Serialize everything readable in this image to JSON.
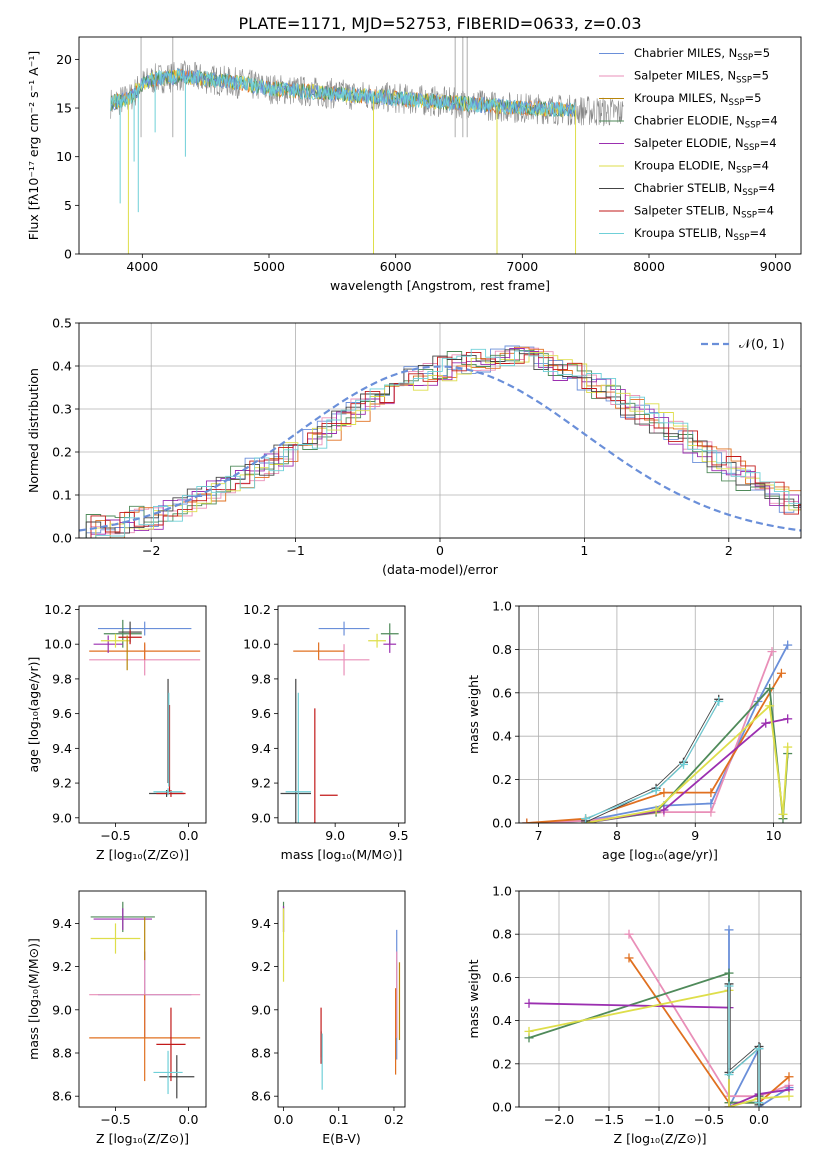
{
  "figure": {
    "title": "PLATE=1171, MJD=52753, FIBERID=0633, z=0.03"
  },
  "colors": {
    "c0": "#6a8fd9",
    "c1": "#e98fb8",
    "c2": "#b8860b",
    "c3": "#4f8a5a",
    "c4": "#9b2fb0",
    "c5": "#dede4a",
    "c6": "#444444",
    "c7": "#c21a1a",
    "c8": "#6fd0d8",
    "orange": "#e07020",
    "grey": "#888888",
    "gauss": "#6a8fd9"
  },
  "chart_data": [
    {
      "id": "spectrum",
      "type": "line",
      "xlabel": "wavelength [Angstrom, rest frame]",
      "ylabel": "Flux [fλ10⁻¹⁷ erg cm⁻² s⁻¹ A⁻¹]",
      "xlim": [
        3500,
        9200
      ],
      "ylim": [
        0,
        22.3
      ],
      "xticks": [
        4000,
        5000,
        6000,
        7000,
        8000,
        9000
      ],
      "yticks": [
        0,
        5,
        10,
        15,
        20
      ],
      "grid": false,
      "legend_position": "top-right",
      "legend": [
        {
          "label": "Chabrier MILES, N",
          "sub": "SSP",
          "suffix": "=5",
          "color": "c0"
        },
        {
          "label": "Salpeter MILES, N",
          "sub": "SSP",
          "suffix": "=5",
          "color": "c1"
        },
        {
          "label": "Kroupa MILES, N",
          "sub": "SSP",
          "suffix": "=5",
          "color": "c2"
        },
        {
          "label": "Chabrier ELODIE, N",
          "sub": "SSP",
          "suffix": "=4",
          "color": "c3"
        },
        {
          "label": "Salpeter ELODIE, N",
          "sub": "SSP",
          "suffix": "=4",
          "color": "c4"
        },
        {
          "label": "Kroupa ELODIE, N",
          "sub": "SSP",
          "suffix": "=4",
          "color": "c5"
        },
        {
          "label": "Chabrier STELIB, N",
          "sub": "SSP",
          "suffix": "=4",
          "color": "c6"
        },
        {
          "label": "Salpeter STELIB, N",
          "sub": "SSP",
          "suffix": "=4",
          "color": "c7"
        },
        {
          "label": "Kroupa STELIB, N",
          "sub": "SSP",
          "suffix": "=4",
          "color": "c8"
        }
      ],
      "data_range": [
        3750,
        7800
      ],
      "model_range": [
        3750,
        7420
      ],
      "continuum": [
        [
          3750,
          15.5
        ],
        [
          3900,
          16.0
        ],
        [
          4000,
          17.5
        ],
        [
          4100,
          18.0
        ],
        [
          4300,
          18.3
        ],
        [
          4500,
          18.0
        ],
        [
          4800,
          17.5
        ],
        [
          5000,
          17.0
        ],
        [
          5500,
          16.5
        ],
        [
          6000,
          16.0
        ],
        [
          6500,
          15.5
        ],
        [
          7000,
          15.0
        ],
        [
          7400,
          14.8
        ],
        [
          7800,
          14.5
        ]
      ],
      "spikes": [
        {
          "x": 3825,
          "y": 5.2
        },
        {
          "x": 3890,
          "y": 0.0
        },
        {
          "x": 3935,
          "y": 9.5
        },
        {
          "x": 3968,
          "y": 4.3
        },
        {
          "x": 4101,
          "y": 12.5
        },
        {
          "x": 4340,
          "y": 10.0
        },
        {
          "x": 5825,
          "y": 0.0
        },
        {
          "x": 6800,
          "y": 0.0
        },
        {
          "x": 7420,
          "y": 0.0
        }
      ],
      "bad_pixels": [
        [
          6470,
          22.3
        ],
        [
          6530,
          22.3
        ],
        [
          6565,
          22.3
        ],
        [
          3990,
          22.3
        ],
        [
          4240,
          22.3
        ]
      ]
    },
    {
      "id": "residual-histogram",
      "type": "bar",
      "xlabel": "(data-model)/error",
      "ylabel": "Normed distribution",
      "xlim": [
        -2.5,
        2.5
      ],
      "ylim": [
        0,
        0.5
      ],
      "xticks": [
        -2,
        -1,
        0,
        1,
        2
      ],
      "yticks": [
        0.0,
        0.1,
        0.2,
        0.3,
        0.4,
        0.5
      ],
      "grid": true,
      "legend_position": "top-right",
      "legend": [
        {
          "label": "𝒩(0, 1)",
          "color": "gauss",
          "dashed": true
        }
      ],
      "bin_width": 0.1,
      "base": [
        0.02,
        0.025,
        0.03,
        0.035,
        0.045,
        0.05,
        0.06,
        0.075,
        0.09,
        0.105,
        0.12,
        0.14,
        0.16,
        0.175,
        0.195,
        0.215,
        0.235,
        0.255,
        0.275,
        0.3,
        0.32,
        0.34,
        0.355,
        0.37,
        0.385,
        0.395,
        0.405,
        0.41,
        0.415,
        0.42,
        0.42,
        0.415,
        0.405,
        0.395,
        0.38,
        0.365,
        0.345,
        0.325,
        0.305,
        0.285,
        0.265,
        0.245,
        0.22,
        0.2,
        0.18,
        0.16,
        0.14,
        0.12,
        0.1,
        0.085,
        0.07,
        0.06,
        0.05,
        0.04,
        0.035,
        0.03,
        0.025,
        0.02,
        0.02,
        0.015,
        0.015
      ]
    },
    {
      "id": "age-vs-Z",
      "type": "scatter",
      "xlabel": "Z [log₁₀(Z/Z⊙)]",
      "ylabel": "age  [log₁₀(age/yr)]",
      "xlim": [
        -0.75,
        0.12
      ],
      "ylim": [
        8.97,
        10.22
      ],
      "xticks": [
        -0.5,
        0.0
      ],
      "yticks": [
        9.0,
        9.2,
        9.4,
        9.6,
        9.8,
        10.0,
        10.2
      ],
      "grid": false,
      "points": [
        {
          "x": -0.3,
          "xerr": 0.32,
          "y": 10.09,
          "yerr": 0.04,
          "color": "c0"
        },
        {
          "x": -0.3,
          "xerr": 0.38,
          "y": 9.91,
          "yerr": 0.09,
          "color": "c1"
        },
        {
          "x": -0.3,
          "xerr": 0.38,
          "y": 9.96,
          "yerr": 0.05,
          "color": "orange"
        },
        {
          "x": -0.45,
          "xerr": 0.13,
          "y": 10.06,
          "yerr": 0.08,
          "color": "c3"
        },
        {
          "x": -0.55,
          "xerr": 0.1,
          "y": 10.0,
          "yerr": 0.05,
          "color": "c4"
        },
        {
          "x": -0.5,
          "xerr": 0.1,
          "y": 10.02,
          "yerr": 0.04,
          "color": "c5"
        },
        {
          "x": -0.4,
          "xerr": 0.08,
          "y": 10.07,
          "yerr": 0.06,
          "color": "c6"
        },
        {
          "x": -0.4,
          "xerr": 0.08,
          "y": 10.04,
          "yerr": 0.04,
          "color": "c7"
        },
        {
          "x": -0.15,
          "xerr": 0.12,
          "y": 9.14,
          "yerr": 0.02,
          "color": "c6"
        },
        {
          "x": -0.12,
          "xerr": 0.1,
          "y": 9.14,
          "yerr": 0.02,
          "color": "c7"
        },
        {
          "x": -0.14,
          "xerr": 0.1,
          "y": 9.15,
          "yerr": 0.02,
          "color": "c8"
        },
        {
          "x": -0.14,
          "xerr": 0.0,
          "y": 9.5,
          "yerr": 0.3,
          "color": "c6"
        },
        {
          "x": -0.13,
          "xerr": 0.0,
          "y": 9.4,
          "yerr": 0.25,
          "color": "c7"
        },
        {
          "x": -0.135,
          "xerr": 0.0,
          "y": 9.45,
          "yerr": 0.27,
          "color": "c8"
        },
        {
          "x": -0.42,
          "xerr": 0.0,
          "y": 9.95,
          "yerr": 0.1,
          "color": "c2"
        }
      ]
    },
    {
      "id": "age-vs-mass",
      "type": "scatter",
      "xlabel": "mass [log₁₀(M/M⊙)]",
      "ylabel": "",
      "xlim": [
        8.55,
        9.55
      ],
      "ylim": [
        8.97,
        10.22
      ],
      "xticks": [
        8.5,
        9.0,
        9.5
      ],
      "yticks": [
        9.0,
        9.2,
        9.4,
        9.6,
        9.8,
        10.0,
        10.2
      ],
      "grid": false,
      "points": [
        {
          "x": 9.07,
          "xerr": 0.2,
          "y": 10.09,
          "yerr": 0.04,
          "color": "c0"
        },
        {
          "x": 9.07,
          "xerr": 0.2,
          "y": 9.91,
          "yerr": 0.09,
          "color": "c1"
        },
        {
          "x": 8.87,
          "xerr": 0.2,
          "y": 9.96,
          "yerr": 0.05,
          "color": "orange"
        },
        {
          "x": 9.43,
          "xerr": 0.07,
          "y": 10.06,
          "yerr": 0.06,
          "color": "c3"
        },
        {
          "x": 9.43,
          "xerr": 0.05,
          "y": 10.0,
          "yerr": 0.05,
          "color": "c4"
        },
        {
          "x": 9.33,
          "xerr": 0.07,
          "y": 10.02,
          "yerr": 0.04,
          "color": "c5"
        },
        {
          "x": 8.69,
          "xerr": 0.12,
          "y": 9.14,
          "yerr": 0.66,
          "color": "c6"
        },
        {
          "x": 8.84,
          "xerr": 0.0,
          "y": 9.13,
          "yerr": 0.5,
          "color": "c7"
        },
        {
          "x": 8.71,
          "xerr": 0.1,
          "y": 9.15,
          "yerr": 0.57,
          "color": "c8"
        },
        {
          "x": 8.95,
          "xerr": 0.07,
          "y": 9.13,
          "yerr": 0.0,
          "color": "c7"
        }
      ]
    },
    {
      "id": "weight-vs-age",
      "type": "line",
      "xlabel": "age  [log₁₀(age/yr)]",
      "ylabel": "mass weight",
      "xlim": [
        6.75,
        10.35
      ],
      "ylim": [
        0,
        1
      ],
      "xticks": [
        7,
        8,
        9,
        10
      ],
      "yticks": [
        0.0,
        0.2,
        0.4,
        0.6,
        0.8,
        1.0
      ],
      "grid": true,
      "series": [
        {
          "color": "c0",
          "x": [
            6.85,
            7.6,
            8.6,
            9.2,
            9.8,
            10.18
          ],
          "y": [
            0.0,
            0.01,
            0.08,
            0.09,
            0.56,
            0.82
          ]
        },
        {
          "color": "c1",
          "x": [
            6.85,
            7.6,
            8.6,
            9.2,
            9.98
          ],
          "y": [
            0.0,
            0.01,
            0.05,
            0.05,
            0.79
          ]
        },
        {
          "color": "orange",
          "x": [
            6.85,
            7.6,
            8.6,
            9.2,
            10.1
          ],
          "y": [
            0.0,
            0.02,
            0.14,
            0.14,
            0.69
          ]
        },
        {
          "color": "c3",
          "x": [
            7.6,
            8.5,
            9.95,
            10.12,
            10.18
          ],
          "y": [
            0.0,
            0.05,
            0.62,
            0.02,
            0.32
          ]
        },
        {
          "color": "c4",
          "x": [
            7.6,
            8.6,
            9.9,
            10.18
          ],
          "y": [
            0.0,
            0.06,
            0.46,
            0.48
          ]
        },
        {
          "color": "c5",
          "x": [
            7.6,
            8.5,
            9.95,
            10.12,
            10.18
          ],
          "y": [
            0.0,
            0.06,
            0.54,
            0.04,
            0.35
          ]
        },
        {
          "color": "c6",
          "x": [
            7.6,
            8.5,
            8.85,
            9.3
          ],
          "y": [
            0.01,
            0.16,
            0.28,
            0.57
          ]
        },
        {
          "color": "c8",
          "x": [
            7.6,
            8.5,
            8.85,
            9.3
          ],
          "y": [
            0.02,
            0.15,
            0.27,
            0.56
          ]
        }
      ]
    },
    {
      "id": "mass-vs-Z",
      "type": "scatter",
      "xlabel": "Z [log₁₀(Z/Z⊙)]",
      "ylabel": "mass [log₁₀(M/M⊙)]",
      "xlim": [
        -0.75,
        0.12
      ],
      "ylim": [
        8.55,
        9.55
      ],
      "xticks": [
        -0.5,
        0.0
      ],
      "yticks": [
        8.6,
        8.8,
        9.0,
        9.2,
        9.4
      ],
      "grid": false,
      "points": [
        {
          "x": -0.3,
          "xerr": 0.32,
          "y": 9.07,
          "yerr": 0.2,
          "color": "c0"
        },
        {
          "x": -0.3,
          "xerr": 0.38,
          "y": 9.07,
          "yerr": 0.2,
          "color": "c1"
        },
        {
          "x": -0.3,
          "xerr": 0.38,
          "y": 8.87,
          "yerr": 0.2,
          "color": "orange"
        },
        {
          "x": -0.45,
          "xerr": 0.22,
          "y": 9.43,
          "yerr": 0.07,
          "color": "c3"
        },
        {
          "x": -0.45,
          "xerr": 0.2,
          "y": 9.42,
          "yerr": 0.05,
          "color": "c4"
        },
        {
          "x": -0.5,
          "xerr": 0.17,
          "y": 9.33,
          "yerr": 0.07,
          "color": "c5"
        },
        {
          "x": -0.08,
          "xerr": 0.12,
          "y": 8.69,
          "yerr": 0.1,
          "color": "c6"
        },
        {
          "x": -0.12,
          "xerr": 0.1,
          "y": 8.84,
          "yerr": 0.17,
          "color": "c7"
        },
        {
          "x": -0.14,
          "xerr": 0.1,
          "y": 8.71,
          "yerr": 0.1,
          "color": "c8"
        },
        {
          "x": -0.3,
          "xerr": 0.0,
          "y": 9.33,
          "yerr": 0.1,
          "color": "c2"
        }
      ]
    },
    {
      "id": "mass-vs-EBV",
      "type": "scatter",
      "xlabel": "E(B-V)",
      "ylabel": "",
      "xlim": [
        -0.01,
        0.22
      ],
      "ylim": [
        8.55,
        9.55
      ],
      "xticks": [
        0.0,
        0.1,
        0.2
      ],
      "yticks": [
        8.6,
        8.8,
        9.0,
        9.2,
        9.4
      ],
      "grid": false,
      "points": [
        {
          "x": 0.205,
          "xerr": 0.0,
          "y": 9.07,
          "yerr": 0.3,
          "color": "c0"
        },
        {
          "x": 0.205,
          "xerr": 0.0,
          "y": 9.07,
          "yerr": 0.2,
          "color": "c1"
        },
        {
          "x": 0.203,
          "xerr": 0.0,
          "y": 8.9,
          "yerr": 0.2,
          "color": "orange"
        },
        {
          "x": 0.0,
          "xerr": 0.0,
          "y": 9.43,
          "yerr": 0.07,
          "color": "c3"
        },
        {
          "x": 0.0,
          "xerr": 0.0,
          "y": 9.42,
          "yerr": 0.06,
          "color": "c4"
        },
        {
          "x": 0.0,
          "xerr": 0.0,
          "y": 9.3,
          "yerr": 0.17,
          "color": "c5"
        },
        {
          "x": 0.068,
          "xerr": 0.0,
          "y": 8.84,
          "yerr": 0.06,
          "color": "c6"
        },
        {
          "x": 0.068,
          "xerr": 0.0,
          "y": 8.88,
          "yerr": 0.13,
          "color": "c7"
        },
        {
          "x": 0.07,
          "xerr": 0.0,
          "y": 8.76,
          "yerr": 0.13,
          "color": "c8"
        },
        {
          "x": 0.21,
          "xerr": 0.0,
          "y": 9.04,
          "yerr": 0.18,
          "color": "c2"
        }
      ]
    },
    {
      "id": "weight-vs-Z",
      "type": "line",
      "xlabel": "Z [log₁₀(Z/Z⊙)]",
      "ylabel": "mass weight",
      "xlim": [
        -2.4,
        0.42
      ],
      "ylim": [
        0,
        1
      ],
      "xticks": [
        -2.0,
        -1.5,
        -1.0,
        -0.5,
        0.0
      ],
      "yticks": [
        0.0,
        0.2,
        0.4,
        0.6,
        0.8,
        1.0
      ],
      "grid": true,
      "series": [
        {
          "color": "c0",
          "x": [
            -0.3,
            -0.3,
            0.0,
            0.0,
            0.3
          ],
          "y": [
            0.82,
            0.0,
            0.27,
            0.0,
            0.09
          ]
        },
        {
          "color": "c1",
          "x": [
            -1.3,
            -0.3,
            0.0,
            0.3
          ],
          "y": [
            0.8,
            0.05,
            0.05,
            0.1
          ]
        },
        {
          "color": "orange",
          "x": [
            -1.3,
            -0.3,
            0.0,
            0.3
          ],
          "y": [
            0.69,
            0.02,
            0.02,
            0.14
          ]
        },
        {
          "color": "c3",
          "x": [
            -2.3,
            -0.3,
            -0.3,
            0.0,
            0.0
          ],
          "y": [
            0.32,
            0.62,
            0.02,
            0.02,
            0.05
          ]
        },
        {
          "color": "c4",
          "x": [
            -2.3,
            -0.3,
            -0.3,
            0.0,
            0.3
          ],
          "y": [
            0.48,
            0.46,
            0.0,
            0.06,
            0.08
          ]
        },
        {
          "color": "c5",
          "x": [
            -2.3,
            -0.3,
            -0.3,
            0.0,
            0.3
          ],
          "y": [
            0.35,
            0.54,
            0.0,
            0.04,
            0.05
          ]
        },
        {
          "color": "c6",
          "x": [
            -0.3,
            -0.3,
            0.0,
            0.0
          ],
          "y": [
            0.57,
            0.16,
            0.28,
            0.01
          ]
        },
        {
          "color": "c8",
          "x": [
            -0.3,
            -0.3,
            0.0,
            0.0
          ],
          "y": [
            0.56,
            0.15,
            0.27,
            0.02
          ]
        }
      ]
    }
  ]
}
